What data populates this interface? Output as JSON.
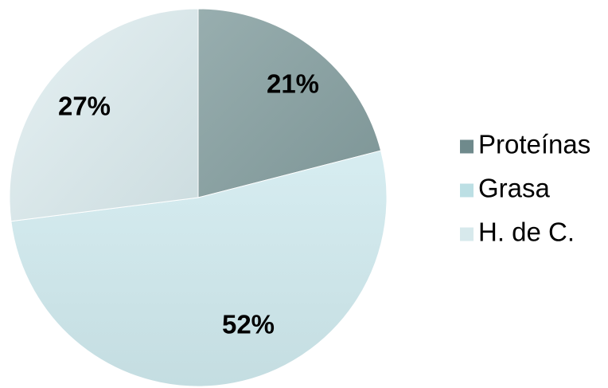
{
  "chart_data": {
    "type": "pie",
    "categories": [
      "Proteínas",
      "Grasa",
      "H. de C."
    ],
    "values": [
      21,
      52,
      27
    ],
    "labels": [
      "21%",
      "52%",
      "27%"
    ],
    "legend_position": "right"
  },
  "colors": {
    "slices": [
      "#90a7a8",
      "#cfe6ea",
      "#dbe9eb"
    ],
    "legend_swatches": [
      "#6f8a8c",
      "#bcdfe4",
      "#d7e9ec"
    ]
  }
}
